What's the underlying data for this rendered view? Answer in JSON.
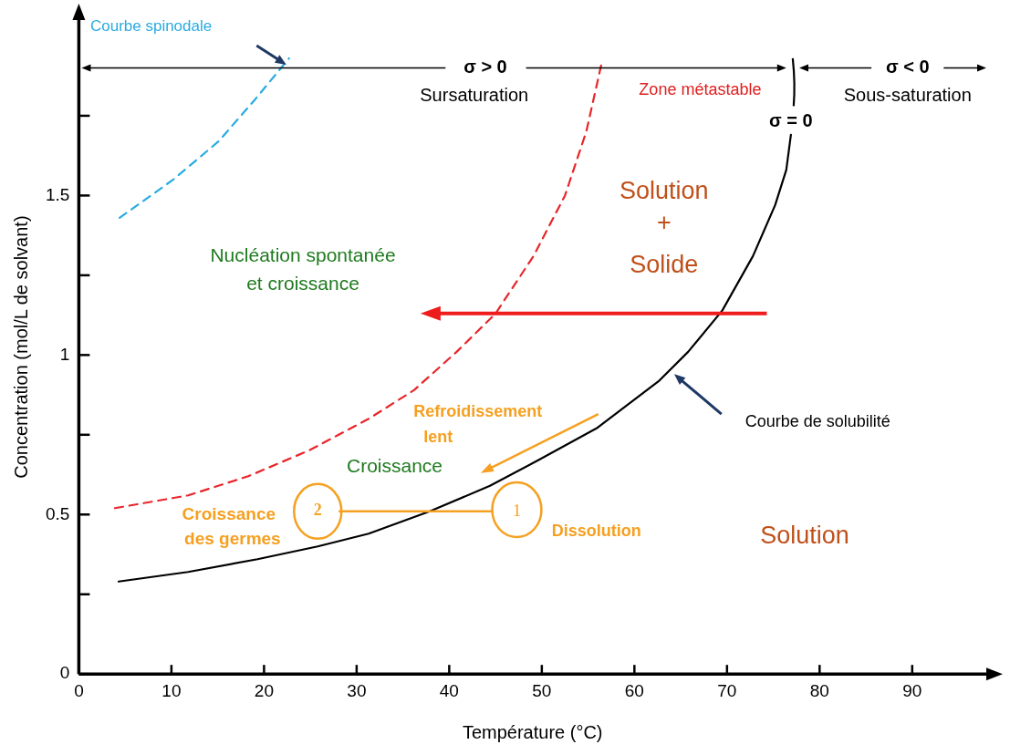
{
  "chart_data": {
    "type": "line",
    "xlabel": "Température (°C)",
    "ylabel": "Concentration (mol/L de solvant)",
    "xlim": [
      0,
      98
    ],
    "xticks": [
      0,
      10,
      20,
      30,
      40,
      50,
      60,
      70,
      80,
      90
    ],
    "ylim": [
      0,
      2.05
    ],
    "yticks": [
      0,
      {
        "value": 0.25,
        "label": null
      },
      {
        "value": 0.5,
        "label": "0.5"
      },
      {
        "value": 0.75,
        "label": null
      },
      1,
      {
        "value": 1.25,
        "label": null
      },
      1.5,
      {
        "value": 1.75,
        "label": null
      }
    ],
    "grid": false,
    "legend": false,
    "marker": "none",
    "series": [
      {
        "color": "#000000",
        "line_style": "solid",
        "x": [
          4.3,
          11.8,
          19.3,
          25.8,
          31.3,
          37.9,
          44.4,
          49.6,
          55.9,
          62.7,
          65.8,
          69.5,
          72.8,
          75.2,
          76.4,
          76.9
        ],
        "values": [
          0.29,
          0.32,
          0.36,
          0.4,
          0.44,
          0.51,
          0.59,
          0.67,
          0.77,
          0.92,
          1.01,
          1.14,
          1.31,
          1.47,
          1.58,
          1.69
        ]
      },
      {
        "color": "#e8262a",
        "line_style": "dashed",
        "x": [
          3.9,
          11.8,
          18.3,
          24.8,
          31.3,
          36.2,
          40.8,
          45.0,
          49.1,
          52.5,
          54.8,
          56.5
        ],
        "values": [
          0.52,
          0.56,
          0.62,
          0.7,
          0.8,
          0.89,
          1.01,
          1.13,
          1.31,
          1.5,
          1.7,
          1.92
        ]
      },
      {
        "color": "#29abe2",
        "line_style": "dashed",
        "x": [
          4.4,
          10.2,
          15.1,
          19.0,
          22.7
        ],
        "values": [
          1.43,
          1.55,
          1.67,
          1.8,
          1.93
        ]
      }
    ],
    "annotations": [
      "Courbe spinodale",
      "σ > 0",
      "Sursaturation",
      "Zone métastable",
      "σ = 0",
      "σ < 0",
      "Sous-saturation",
      "Solution",
      "+",
      "Solide",
      "Nucléation spontanée",
      "et croissance",
      "Refroidissement",
      "lent",
      "Croissance",
      "Croissance",
      "des germes",
      "2",
      "1",
      "Dissolution",
      "Solution",
      "Courbe de solubilité"
    ]
  }
}
